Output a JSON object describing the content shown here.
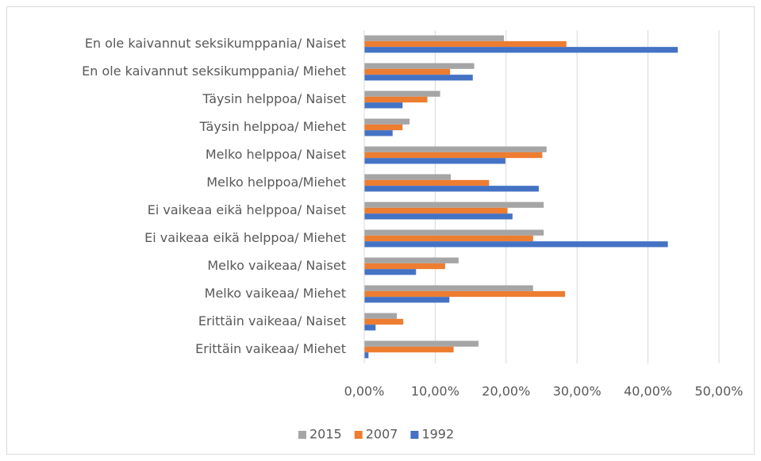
{
  "chart_data": {
    "type": "hbar",
    "categories": [
      "En ole kaivannut seksikumppania/ Naiset",
      "En ole kaivannut seksikumppania/ Miehet",
      "Täysin helppoa/ Naiset",
      "Täysin helppoa/ Miehet",
      "Melko helppoa/ Naiset",
      "Melko helppoa/Miehet",
      "Ei vaikeaa eikä helppoa/ Naiset",
      "Ei vaikeaa eikä helppoa/ Miehet",
      "Melko vaikeaa/ Naiset",
      "Melko vaikeaa/ Miehet",
      "Erittäin vaikeaa/ Naiset",
      "Erittäin vaikeaa/ Miehet"
    ],
    "series": [
      {
        "name": "2015",
        "color": "#a5a5a5",
        "values": [
          19.7,
          15.5,
          10.7,
          6.4,
          25.7,
          12.2,
          25.3,
          25.3,
          13.3,
          23.8,
          4.6,
          16.1
        ]
      },
      {
        "name": "2007",
        "color": "#ed7d31",
        "values": [
          28.5,
          12.1,
          8.9,
          5.4,
          25.1,
          17.6,
          20.2,
          23.8,
          11.4,
          28.3,
          5.5,
          12.6
        ]
      },
      {
        "name": "1992",
        "color": "#4472c4",
        "values": [
          44.2,
          15.3,
          5.4,
          4.0,
          19.9,
          24.6,
          20.9,
          42.8,
          7.3,
          12.0,
          1.6,
          0.6
        ]
      }
    ],
    "xlim": [
      0,
      50
    ],
    "xticks": [
      {
        "value": 0,
        "label": "0,00%"
      },
      {
        "value": 10,
        "label": "10,00%"
      },
      {
        "value": 20,
        "label": "20,00%"
      },
      {
        "value": 30,
        "label": "30,00%"
      },
      {
        "value": 40,
        "label": "40,00%"
      },
      {
        "value": 50,
        "label": "50,00%"
      }
    ],
    "grid": true,
    "legend": "bottom"
  }
}
